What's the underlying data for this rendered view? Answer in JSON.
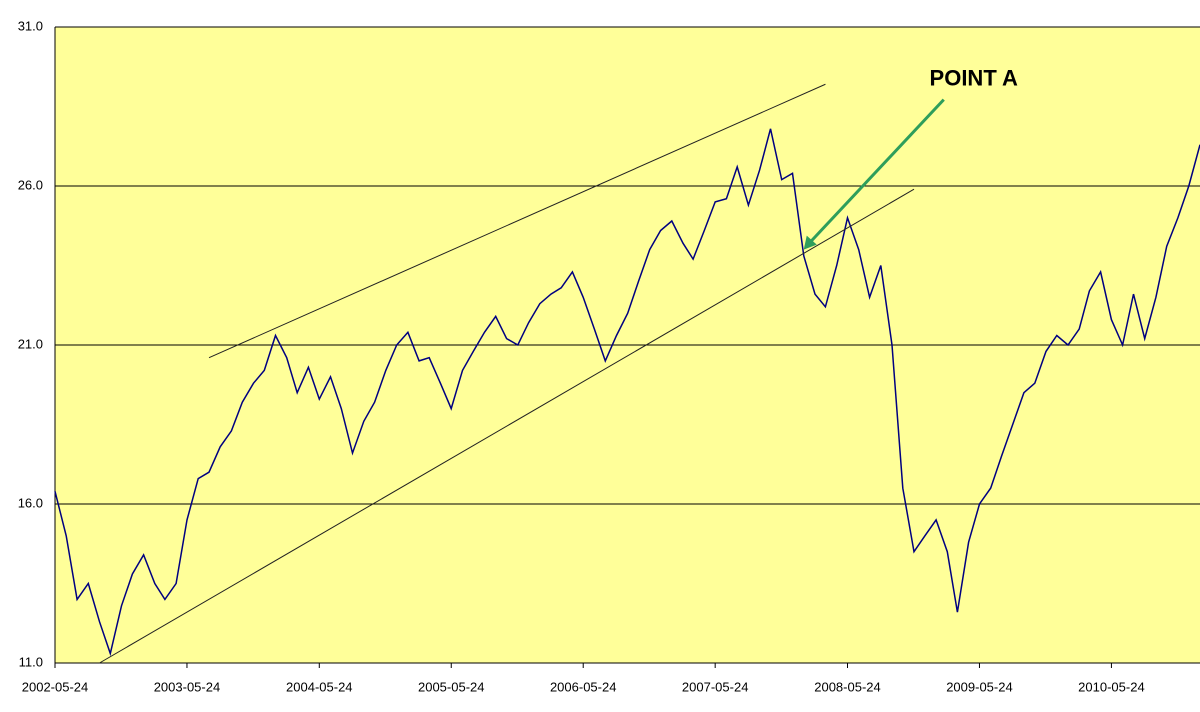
{
  "chart_data": {
    "type": "line",
    "x": [
      "2002-05-24",
      "2002-06-24",
      "2002-07-24",
      "2002-08-24",
      "2002-09-24",
      "2002-10-24",
      "2002-11-24",
      "2002-12-24",
      "2003-01-24",
      "2003-02-24",
      "2003-03-24",
      "2003-04-24",
      "2003-05-24",
      "2003-06-24",
      "2003-07-24",
      "2003-08-24",
      "2003-09-24",
      "2003-10-24",
      "2003-11-24",
      "2003-12-24",
      "2004-01-24",
      "2004-02-24",
      "2004-03-24",
      "2004-04-24",
      "2004-05-24",
      "2004-06-24",
      "2004-07-24",
      "2004-08-24",
      "2004-09-24",
      "2004-10-24",
      "2004-11-24",
      "2004-12-24",
      "2005-01-24",
      "2005-02-24",
      "2005-03-24",
      "2005-04-24",
      "2005-05-24",
      "2005-06-24",
      "2005-07-24",
      "2005-08-24",
      "2005-09-24",
      "2005-10-24",
      "2005-11-24",
      "2005-12-24",
      "2006-01-24",
      "2006-02-24",
      "2006-03-24",
      "2006-04-24",
      "2006-05-24",
      "2006-06-24",
      "2006-07-24",
      "2006-08-24",
      "2006-09-24",
      "2006-10-24",
      "2006-11-24",
      "2006-12-24",
      "2007-01-24",
      "2007-02-24",
      "2007-03-24",
      "2007-04-24",
      "2007-05-24",
      "2007-06-24",
      "2007-07-24",
      "2007-08-24",
      "2007-09-24",
      "2007-10-24",
      "2007-11-24",
      "2007-12-24",
      "2008-01-24",
      "2008-02-24",
      "2008-03-24",
      "2008-04-24",
      "2008-05-24",
      "2008-06-24",
      "2008-07-24",
      "2008-08-24",
      "2008-09-24",
      "2008-10-24",
      "2008-11-24",
      "2008-12-24",
      "2009-01-24",
      "2009-02-24",
      "2009-03-24",
      "2009-04-24",
      "2009-05-24",
      "2009-06-24",
      "2009-07-24",
      "2009-08-24",
      "2009-09-24",
      "2009-10-24",
      "2009-11-24",
      "2009-12-24",
      "2010-01-24",
      "2010-02-24",
      "2010-03-24",
      "2010-04-24",
      "2010-05-24",
      "2010-06-24",
      "2010-07-24",
      "2010-08-24",
      "2010-09-24",
      "2010-10-24",
      "2010-11-24",
      "2010-12-24",
      "2011-01-24"
    ],
    "series": [
      {
        "color": "#000080",
        "values": [
          16.4,
          15.0,
          13.0,
          13.5,
          12.3,
          11.3,
          12.8,
          13.8,
          14.4,
          13.5,
          13.0,
          13.5,
          15.5,
          16.8,
          17.0,
          17.8,
          18.3,
          19.2,
          19.8,
          20.2,
          21.3,
          20.6,
          19.5,
          20.3,
          19.3,
          20.0,
          19.0,
          17.6,
          18.6,
          19.2,
          20.2,
          21.0,
          21.4,
          20.5,
          20.6,
          19.8,
          19.0,
          20.2,
          20.8,
          21.4,
          21.9,
          21.2,
          21.0,
          21.7,
          22.3,
          22.6,
          22.8,
          23.3,
          22.5,
          21.5,
          20.5,
          21.3,
          22.0,
          23.0,
          24.0,
          24.6,
          24.9,
          24.2,
          23.7,
          24.6,
          25.5,
          25.6,
          26.6,
          25.4,
          26.5,
          27.8,
          26.2,
          26.4,
          23.8,
          22.6,
          22.2,
          23.5,
          25.0,
          24.0,
          22.5,
          23.5,
          21.0,
          16.5,
          14.5,
          15.0,
          15.5,
          14.5,
          12.6,
          14.8,
          16.0,
          16.5,
          17.5,
          18.5,
          19.5,
          19.8,
          20.8,
          21.3,
          21.0,
          21.5,
          22.7,
          23.3,
          21.8,
          21.0,
          22.6,
          21.2,
          22.5,
          24.1,
          25.0,
          26.0,
          27.3
        ]
      }
    ],
    "xlim": [
      "2002-05-24",
      "2011-01-24"
    ],
    "xticks": [
      "2002-05-24",
      "2003-05-24",
      "2004-05-24",
      "2005-05-24",
      "2006-05-24",
      "2007-05-24",
      "2008-05-24",
      "2009-05-24",
      "2010-05-24"
    ],
    "ylim": [
      11,
      31
    ],
    "yticks": [
      {
        "value": 11,
        "label": "11.0"
      },
      {
        "value": 16,
        "label": "16.0"
      },
      {
        "value": 21,
        "label": "21.0"
      },
      {
        "value": 26,
        "label": "26.0"
      },
      {
        "value": 31,
        "label": "31.0"
      }
    ],
    "grid": true,
    "background": "#ffff99",
    "trendlines": [
      {
        "x": [
          "2003-07-24",
          "2008-03-24"
        ],
        "y": [
          20.6,
          29.2
        ]
      },
      {
        "x": [
          "2002-09-24",
          "2008-11-24"
        ],
        "y": [
          11,
          25.9
        ]
      }
    ],
    "annotations": [
      {
        "text": "POINT A",
        "x": "2008-01-24",
        "y": 24.0,
        "color": "#2e9e5b"
      }
    ]
  }
}
